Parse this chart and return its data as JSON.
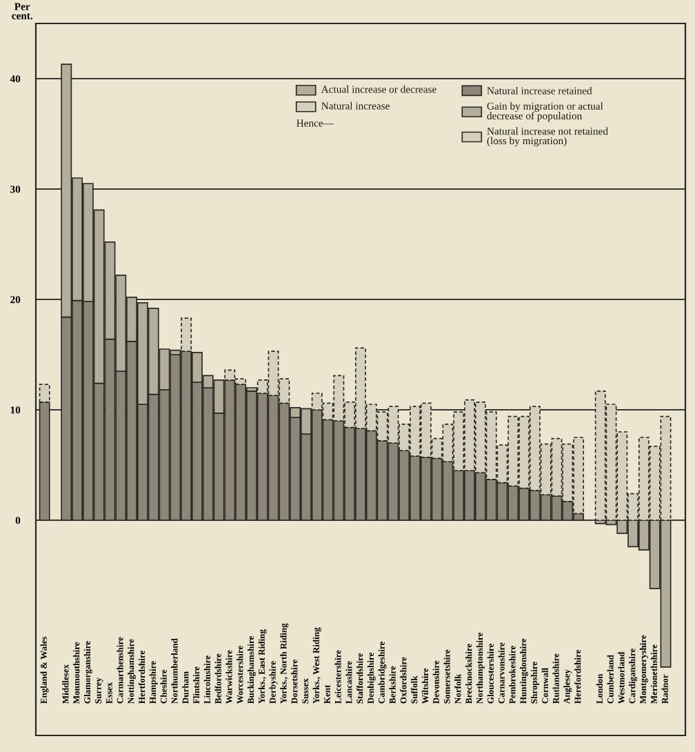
{
  "chart_data": {
    "type": "bar",
    "stacked": true,
    "ylabel": "Per\ncent.",
    "categories": [
      "England & Wales",
      null,
      "Middlesex",
      "Monmouthshire",
      "Glamorganshire",
      "Surrey",
      "Essex",
      "Carmarthenshire",
      "Nottinghamshire",
      "Hertfordshire",
      "Hampshire",
      "Cheshire",
      "Northumberland",
      "Durham",
      "Flintshire",
      "Lincolnshire",
      "Bedfordshire",
      "Warwickshire",
      "Worcestershire",
      "Buckinghamshire",
      "Yorks., East Riding",
      "Derbyshire",
      "Yorks., North Riding",
      "Dorsetshire",
      "Sussex",
      "Yorks., West Riding",
      "Kent",
      "Leicestershire",
      "Lancashire",
      "Staffordshire",
      "Denbighshire",
      "Cambridgeshire",
      "Berkshire",
      "Oxfordshire",
      "Suffolk",
      "Wiltshire",
      "Devonshire",
      "Somersetshire",
      "Norfolk",
      "Brecknockshire",
      "Northamptonshire",
      "Gloucestershire",
      "Carnarvonshire",
      "Pembrokeshire",
      "Huntingdonshire",
      "Shropshire",
      "Cornwall",
      "Rutlandshire",
      "Anglesey",
      "Herefordshire",
      null,
      "London",
      "Cumberland",
      "Westmorland",
      "Cardiganshire",
      "Montgomeryshire",
      "Merionethshire",
      "Radnor"
    ],
    "series": [
      {
        "name": "Natural increase retained",
        "color": "#8c8778",
        "values": [
          10.7,
          null,
          18.4,
          19.9,
          19.8,
          12.4,
          16.4,
          13.5,
          16.2,
          10.5,
          11.4,
          11.8,
          15.0,
          15.3,
          12.5,
          12.0,
          9.7,
          12.7,
          12.3,
          11.7,
          11.5,
          11.3,
          10.6,
          9.3,
          7.8,
          10.0,
          9.1,
          9.0,
          8.4,
          8.3,
          8.1,
          7.2,
          7.0,
          6.3,
          5.8,
          5.7,
          5.6,
          5.3,
          4.5,
          4.5,
          4.3,
          3.7,
          3.4,
          3.1,
          2.9,
          2.7,
          2.3,
          2.2,
          1.7,
          0.6,
          null,
          null,
          null,
          null,
          null,
          null,
          null,
          null
        ]
      },
      {
        "name": "Gain by migration or actual\ndecrease of population",
        "color": "#b3ad9c",
        "values": [
          null,
          null,
          22.9,
          11.1,
          10.7,
          15.7,
          8.8,
          8.7,
          4.0,
          9.2,
          7.8,
          3.7,
          0.4,
          null,
          2.7,
          1.1,
          3.0,
          null,
          null,
          0.3,
          null,
          null,
          null,
          0.9,
          2.3,
          null,
          null,
          null,
          null,
          null,
          null,
          null,
          null,
          null,
          null,
          null,
          null,
          null,
          null,
          null,
          null,
          null,
          null,
          null,
          null,
          null,
          null,
          null,
          null,
          null,
          null,
          -0.3,
          -0.4,
          -1.2,
          -2.4,
          -2.7,
          -6.2,
          -13.3
        ]
      },
      {
        "name": "Natural increase not retained\n(loss by migration)",
        "color": "#d6d0bf",
        "line_style": "dashed",
        "values": [
          1.6,
          null,
          null,
          null,
          null,
          null,
          null,
          null,
          null,
          null,
          null,
          null,
          null,
          3.0,
          null,
          null,
          null,
          0.9,
          0.5,
          null,
          1.2,
          4.0,
          2.2,
          null,
          null,
          1.5,
          1.5,
          4.1,
          2.3,
          7.3,
          2.4,
          2.6,
          3.3,
          2.4,
          4.5,
          4.9,
          1.8,
          3.4,
          5.3,
          6.4,
          6.4,
          6.1,
          3.4,
          6.3,
          6.5,
          7.6,
          4.6,
          5.2,
          5.2,
          6.9,
          null,
          11.7,
          10.5,
          8.0,
          2.4,
          7.5,
          6.7,
          9.4
        ]
      }
    ],
    "annotations": [
      "Actual increase or decrease",
      "Natural increase",
      "Hence—"
    ],
    "ylim": [
      -19.5,
      45
    ],
    "yticks": [
      0,
      10,
      20,
      30,
      40
    ],
    "grid": "y",
    "legend": "top"
  }
}
